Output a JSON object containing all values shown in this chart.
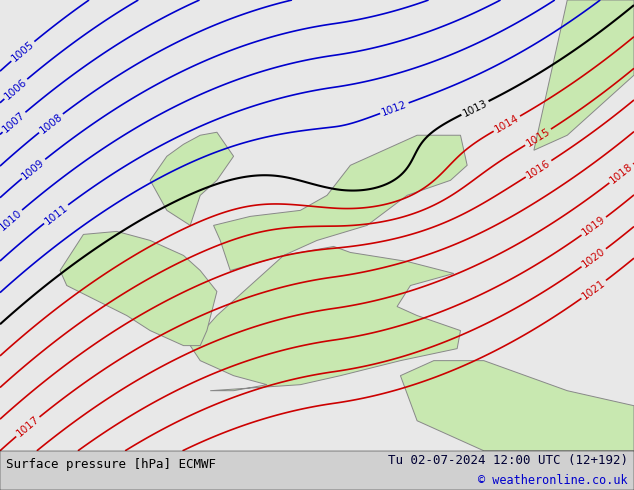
{
  "title_left": "Surface pressure [hPa] ECMWF",
  "title_right": "Tu 02-07-2024 12:00 UTC (12+192)",
  "title_right2": "© weatheronline.co.uk",
  "bg_color": "#e8e8e8",
  "land_color": "#c8e8b0",
  "sea_color": "#d8d8d8",
  "blue_isobar_color": "#0000cc",
  "red_isobar_color": "#cc0000",
  "black_isobar_color": "#000000",
  "figsize": [
    6.34,
    4.9
  ],
  "dpi": 100,
  "blue_levels": [
    1005,
    1006,
    1007,
    1008,
    1009,
    1010,
    1011,
    1012
  ],
  "black_levels": [
    1013
  ],
  "red_levels": [
    1014,
    1015,
    1016,
    1017,
    1018,
    1019,
    1020,
    1021
  ],
  "bottom_bar_color": "#d0d0d0",
  "bottom_bar_height": 0.08,
  "text_color_left": "#000000",
  "text_color_right": "#000033",
  "link_color": "#0000cc",
  "font_size_bottom": 9
}
